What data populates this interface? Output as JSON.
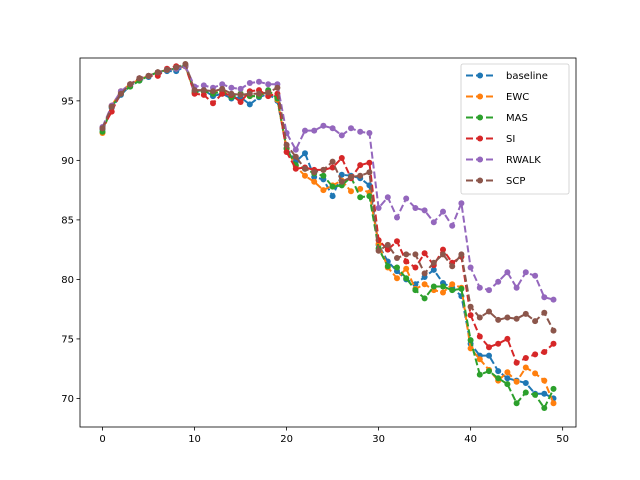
{
  "chart_data": {
    "type": "line",
    "title": "",
    "xlabel": "",
    "ylabel": "",
    "xlim": [
      -2.45,
      51.45
    ],
    "ylim": [
      67.6,
      98.6
    ],
    "xticks": [
      0,
      10,
      20,
      30,
      40,
      50
    ],
    "yticks": [
      70,
      75,
      80,
      85,
      90,
      95
    ],
    "grid": false,
    "legend_position": "top-right",
    "x": [
      0,
      1,
      2,
      3,
      4,
      5,
      6,
      7,
      8,
      9,
      10,
      11,
      12,
      13,
      14,
      15,
      16,
      17,
      18,
      19,
      20,
      21,
      22,
      23,
      24,
      25,
      26,
      27,
      28,
      29,
      30,
      31,
      32,
      33,
      34,
      35,
      36,
      37,
      38,
      39,
      40,
      41,
      42,
      43,
      44,
      45,
      46,
      47,
      48,
      49
    ],
    "series": [
      {
        "name": "baseline",
        "color": "#1f77b4",
        "values": [
          92.6,
          94.4,
          95.5,
          96.3,
          96.7,
          97.0,
          97.3,
          97.5,
          97.5,
          97.9,
          95.8,
          95.9,
          95.4,
          95.6,
          95.2,
          95.3,
          94.7,
          95.3,
          95.6,
          95.0,
          91.0,
          89.9,
          90.6,
          88.6,
          88.4,
          87.0,
          88.8,
          88.7,
          88.5,
          87.9,
          82.9,
          81.5,
          80.7,
          80.0,
          79.6,
          80.2,
          80.8,
          79.7,
          79.3,
          78.6,
          74.6,
          73.6,
          73.6,
          72.3,
          71.7,
          71.5,
          71.3,
          70.4,
          70.4,
          70.0
        ]
      },
      {
        "name": "EWC",
        "color": "#ff7f0e",
        "values": [
          92.3,
          94.6,
          95.8,
          96.4,
          96.8,
          97.1,
          97.4,
          97.6,
          97.7,
          97.9,
          95.7,
          95.8,
          95.7,
          95.9,
          95.4,
          95.6,
          95.4,
          95.4,
          95.8,
          95.1,
          91.0,
          89.5,
          88.7,
          88.2,
          87.5,
          87.9,
          88.3,
          87.4,
          87.6,
          87.3,
          83.0,
          81.0,
          80.1,
          80.9,
          79.2,
          79.6,
          79.1,
          78.9,
          79.6,
          79.3,
          74.2,
          73.3,
          72.4,
          71.5,
          72.2,
          71.4,
          72.6,
          72.1,
          71.5,
          69.6
        ]
      },
      {
        "name": "MAS",
        "color": "#2ca02c",
        "values": [
          92.4,
          94.5,
          95.6,
          96.2,
          96.7,
          97.1,
          97.4,
          97.6,
          97.7,
          98.0,
          95.7,
          95.8,
          95.6,
          95.8,
          95.3,
          95.6,
          95.4,
          95.4,
          95.9,
          95.2,
          91.0,
          89.6,
          89.3,
          88.9,
          88.7,
          87.8,
          87.9,
          88.6,
          86.9,
          87.0,
          82.6,
          81.1,
          81.0,
          80.1,
          79.1,
          78.4,
          79.4,
          79.4,
          79.1,
          79.2,
          74.9,
          72.0,
          72.3,
          71.7,
          71.2,
          69.6,
          70.5,
          70.3,
          69.2,
          70.8
        ]
      },
      {
        "name": "SI",
        "color": "#d62728",
        "values": [
          92.7,
          94.1,
          95.7,
          96.4,
          96.9,
          97.1,
          97.1,
          97.7,
          97.9,
          97.9,
          95.6,
          95.5,
          94.8,
          95.6,
          95.5,
          94.9,
          95.8,
          95.9,
          95.4,
          95.6,
          90.7,
          89.3,
          89.4,
          89.2,
          89.2,
          89.4,
          90.2,
          88.5,
          89.6,
          89.8,
          83.3,
          82.5,
          83.2,
          81.5,
          81.0,
          82.2,
          81.2,
          82.5,
          81.4,
          81.9,
          77.0,
          75.2,
          74.3,
          74.6,
          75.0,
          73.0,
          73.4,
          73.7,
          73.9,
          74.6
        ]
      },
      {
        "name": "RWALK",
        "color": "#9467bd",
        "values": [
          92.8,
          94.6,
          95.8,
          96.4,
          96.9,
          97.1,
          97.4,
          97.6,
          97.7,
          97.9,
          96.2,
          96.3,
          96.1,
          96.4,
          96.1,
          96.0,
          96.5,
          96.6,
          96.4,
          96.4,
          92.3,
          90.9,
          92.5,
          92.5,
          92.9,
          92.7,
          92.1,
          92.7,
          92.4,
          92.3,
          86.0,
          86.9,
          85.2,
          86.8,
          86.0,
          85.8,
          84.8,
          85.7,
          84.5,
          86.4,
          81.0,
          79.3,
          79.1,
          79.8,
          80.6,
          79.3,
          80.6,
          80.3,
          78.5,
          78.3
        ]
      },
      {
        "name": "SCP",
        "color": "#8c564b",
        "values": [
          92.7,
          94.5,
          95.6,
          96.4,
          96.9,
          97.1,
          97.4,
          97.6,
          97.8,
          98.1,
          95.9,
          95.9,
          95.8,
          96.0,
          95.6,
          95.5,
          95.6,
          95.6,
          95.7,
          96.1,
          91.3,
          90.3,
          89.3,
          89.0,
          89.2,
          89.9,
          88.2,
          88.6,
          88.7,
          89.0,
          82.4,
          82.9,
          81.8,
          82.1,
          82.1,
          80.5,
          81.4,
          82.1,
          81.1,
          82.1,
          77.7,
          76.8,
          77.3,
          76.6,
          76.8,
          76.7,
          77.1,
          76.5,
          77.2,
          75.7
        ]
      }
    ]
  }
}
